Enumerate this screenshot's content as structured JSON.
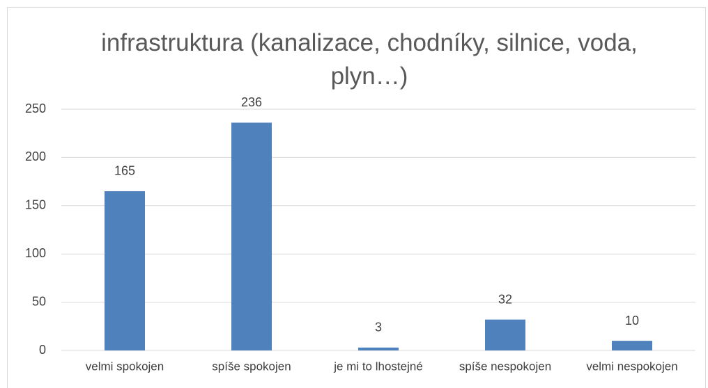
{
  "chart_data": {
    "type": "bar",
    "title": "infrastruktura (kanalizace, chodníky, silnice, voda, plyn…)",
    "categories": [
      "velmi spokojen",
      "spíše spokojen",
      "je mi to lhostejné",
      "spíše nespokojen",
      "velmi nespokojen"
    ],
    "values": [
      165,
      236,
      3,
      32,
      10
    ],
    "color": "#4f81bd",
    "ylim": [
      0,
      250
    ],
    "yticks": [
      0,
      50,
      100,
      150,
      200,
      250
    ],
    "grid": true
  }
}
